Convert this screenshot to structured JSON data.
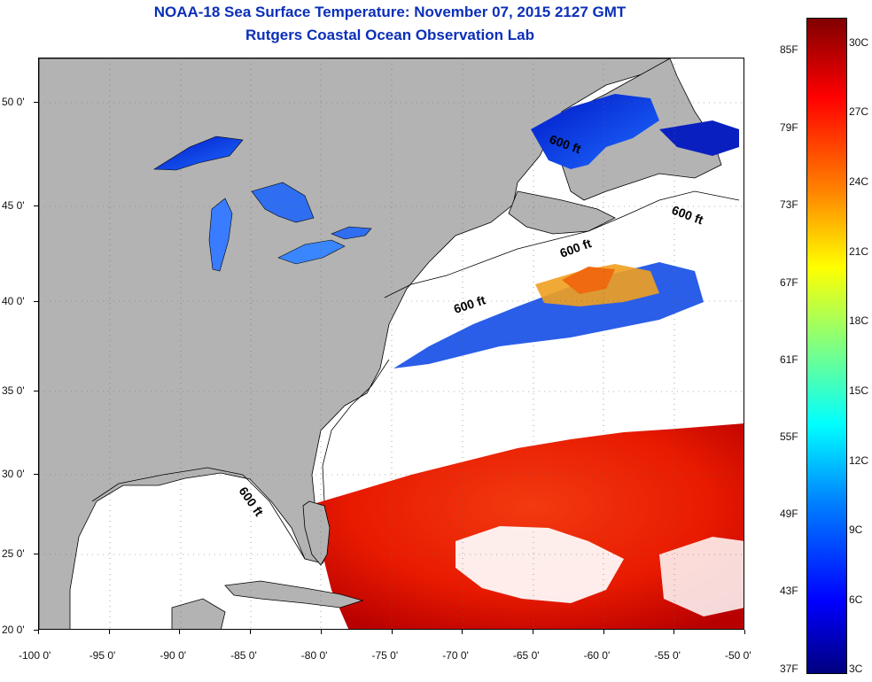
{
  "header": {
    "line1": "NOAA-18 Sea Surface Temperature:  November 07, 2015 2127 GMT",
    "line2": "Rutgers Coastal Ocean Observation Lab"
  },
  "map": {
    "x_ticks": [
      "-100 0'",
      "-95 0'",
      "-90 0'",
      "-85 0'",
      "-80 0'",
      "-75 0'",
      "-70 0'",
      "-65 0'",
      "-60 0'",
      "-55 0'",
      "-50 0'"
    ],
    "y_ticks": [
      "50 0'",
      "45 0'",
      "40 0'",
      "35 0'",
      "30 0'",
      "25 0'",
      "20 0'"
    ],
    "contour_label": "600 ft",
    "colors": {
      "land": "#b3b3b3",
      "ocean_nodata": "#ffffff",
      "coast_line": "#000000",
      "warm": "#e62000",
      "cool": "#1a3ce6"
    }
  },
  "colorbar": {
    "f_labels": [
      "85F",
      "79F",
      "73F",
      "67F",
      "61F",
      "55F",
      "49F",
      "43F",
      "37F"
    ],
    "c_labels": [
      "30C",
      "27C",
      "24C",
      "21C",
      "18C",
      "15C",
      "12C",
      "9C",
      "6C",
      "3C"
    ]
  }
}
